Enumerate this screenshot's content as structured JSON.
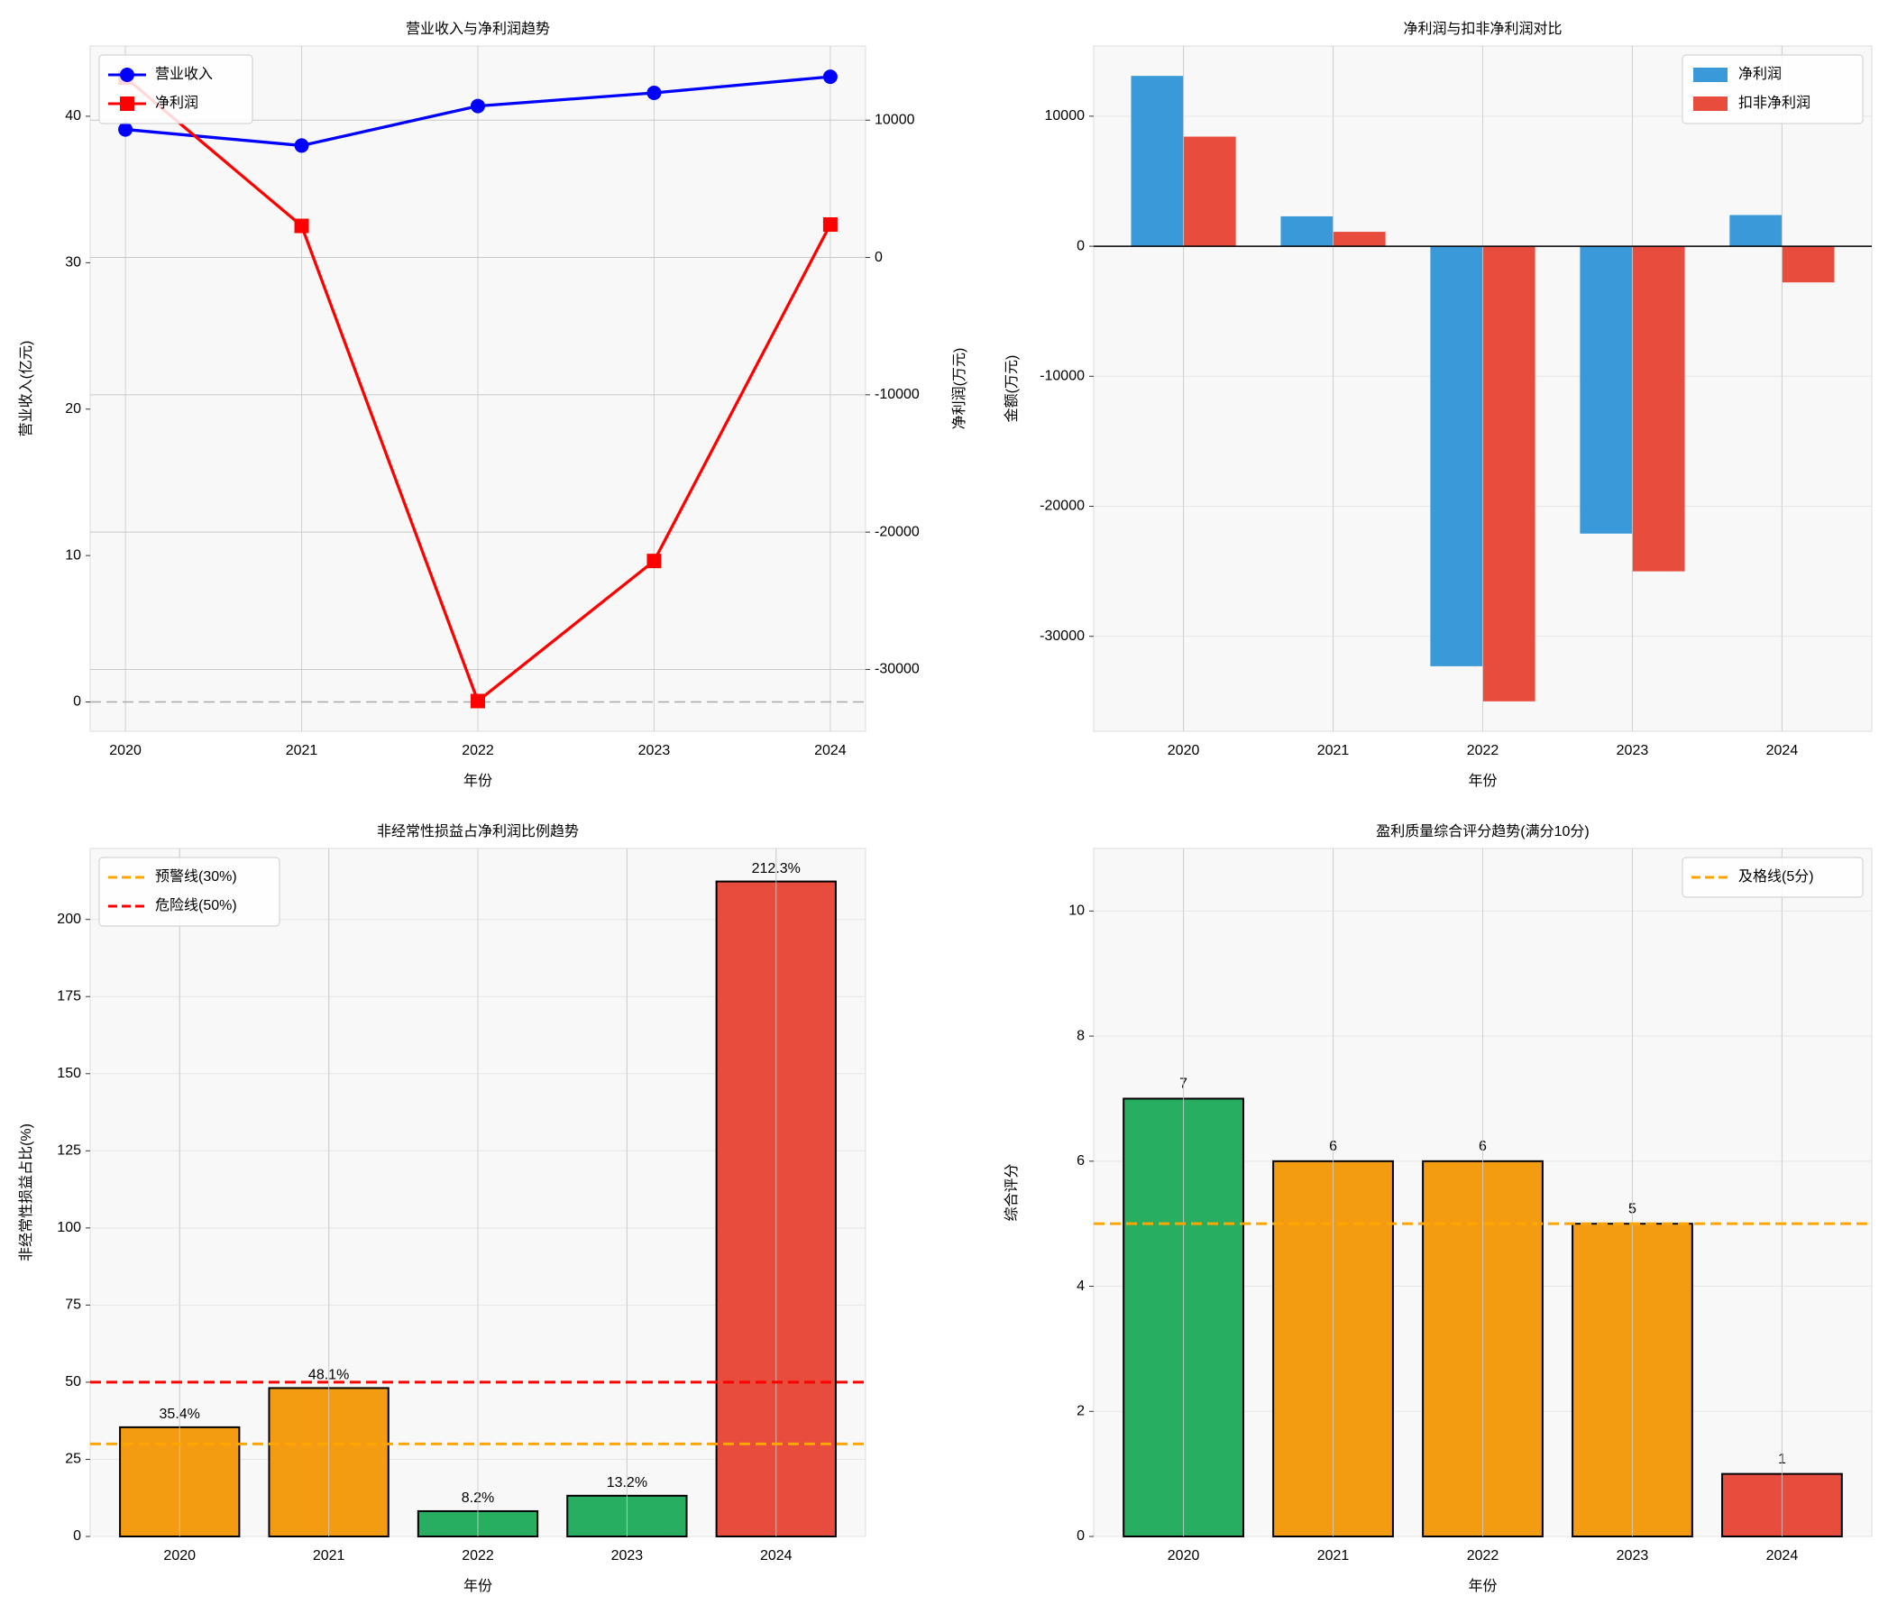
{
  "chart_data": [
    {
      "type": "line",
      "title": "营业收入与净利润趋势",
      "xlabel": "年份",
      "ylabel": "营业收入(亿元)",
      "y2label": "净利润(万元)",
      "categories": [
        "2020",
        "2021",
        "2022",
        "2023",
        "2024"
      ],
      "series": [
        {
          "name": "营业收入",
          "color": "#0000ff",
          "marker": "circle",
          "axis": "y",
          "values": [
            39.1,
            38.0,
            40.7,
            41.6,
            42.7
          ]
        },
        {
          "name": "净利润",
          "color": "#ff0000",
          "marker": "square",
          "axis": "y2",
          "values": [
            13100,
            2300,
            -32300,
            -22100,
            2400
          ]
        }
      ],
      "ylim": [
        -2,
        44.8
      ],
      "yticks": [
        0,
        10,
        20,
        30,
        40
      ],
      "y2lim": [
        -34500,
        15400
      ],
      "y2ticks": [
        -30000,
        -20000,
        -10000,
        0,
        10000
      ],
      "hlines": [
        {
          "value": 0,
          "color": "#aaaaaa",
          "style": "dashed"
        }
      ],
      "grid": true,
      "legend": "upper-left"
    },
    {
      "type": "bar",
      "title": "净利润与扣非净利润对比",
      "xlabel": "年份",
      "ylabel": "金额(万元)",
      "categories": [
        "2020",
        "2021",
        "2022",
        "2023",
        "2024"
      ],
      "series": [
        {
          "name": "净利润",
          "color": "#3a9ad9",
          "values": [
            13100,
            2300,
            -32300,
            -22100,
            2400
          ]
        },
        {
          "name": "扣非净利润",
          "color": "#e74c3c",
          "values": [
            8430,
            1110,
            -35000,
            -25000,
            -2780
          ]
        }
      ],
      "ylim": [
        -37300,
        15400
      ],
      "yticks": [
        -30000,
        -20000,
        -10000,
        0,
        10000
      ],
      "hlines": [
        {
          "value": 0,
          "color": "#000000",
          "style": "solid"
        }
      ],
      "grid": true,
      "legend": "upper-right"
    },
    {
      "type": "bar",
      "title": "非经常性损益占净利润比例趋势",
      "xlabel": "年份",
      "ylabel": "非经常性损益占比(%)",
      "categories": [
        "2020",
        "2021",
        "2022",
        "2023",
        "2024"
      ],
      "series": [
        {
          "colors": [
            "#f39c12",
            "#f39c12",
            "#27ae60",
            "#27ae60",
            "#e74c3c"
          ],
          "values": [
            35.4,
            48.1,
            8.2,
            13.2,
            212.3
          ],
          "value_labels": [
            "35.4%",
            "48.1%",
            "8.2%",
            "13.2%",
            "212.3%"
          ]
        }
      ],
      "ylim": [
        0,
        223
      ],
      "yticks": [
        0,
        25,
        50,
        75,
        100,
        125,
        150,
        175,
        200
      ],
      "hlines": [
        {
          "name": "预警线(30%)",
          "value": 30,
          "color": "#ffa500",
          "style": "dashed"
        },
        {
          "name": "危险线(50%)",
          "value": 50,
          "color": "#ff0000",
          "style": "dashed"
        }
      ],
      "grid": true,
      "legend": "upper-left"
    },
    {
      "type": "bar",
      "title": "盈利质量综合评分趋势(满分10分)",
      "xlabel": "年份",
      "ylabel": "综合评分",
      "categories": [
        "2020",
        "2021",
        "2022",
        "2023",
        "2024"
      ],
      "series": [
        {
          "colors": [
            "#27ae60",
            "#f39c12",
            "#f39c12",
            "#f39c12",
            "#e74c3c"
          ],
          "values": [
            7,
            6,
            6,
            5,
            1
          ],
          "show_values": true
        }
      ],
      "ylim": [
        0,
        11
      ],
      "yticks": [
        0,
        2,
        4,
        6,
        8,
        10
      ],
      "hlines": [
        {
          "name": "及格线(5分)",
          "value": 5,
          "color": "#ffa500",
          "style": "dashed"
        }
      ],
      "grid": true,
      "legend": "upper-right"
    }
  ]
}
